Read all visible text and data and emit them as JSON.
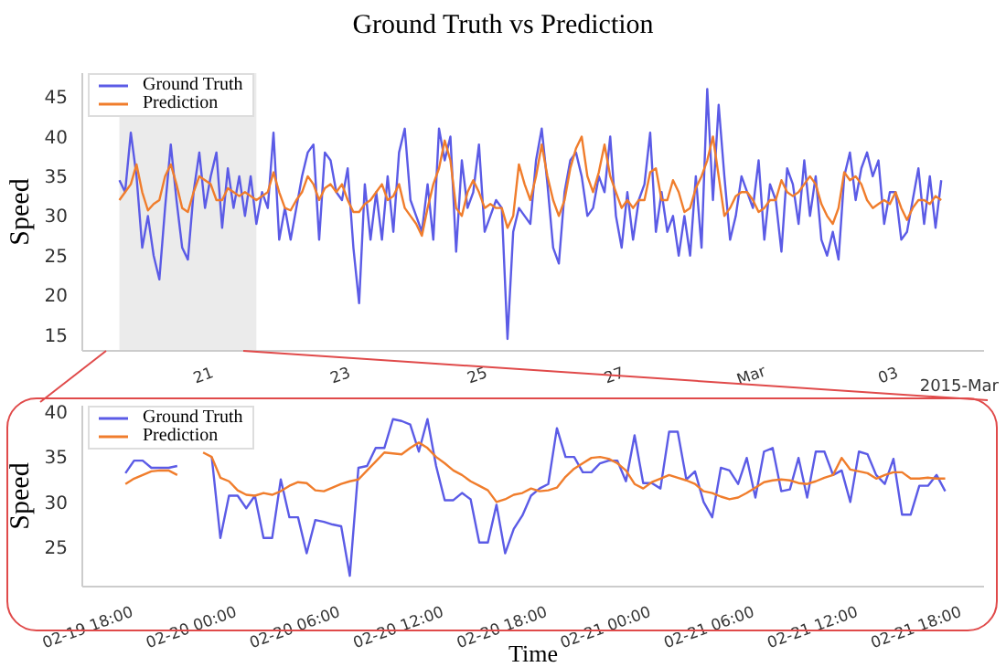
{
  "chart_data": [
    {
      "type": "line",
      "title": "Ground Truth vs Prediction",
      "ylabel": "Speed",
      "legend": "top left",
      "xlim": [
        "2015-02-19T05:00",
        "2015-03-04T09:00"
      ],
      "ylim": [
        13,
        48
      ],
      "yticks": [
        15,
        20,
        25,
        30,
        35,
        40,
        45
      ],
      "xticks": [
        {
          "value": "2015-02-21",
          "label": "21"
        },
        {
          "value": "2015-02-23",
          "label": "23"
        },
        {
          "value": "2015-02-25",
          "label": "25"
        },
        {
          "value": "2015-02-27",
          "label": "27"
        },
        {
          "value": "2015-03-01",
          "label": "Mar"
        },
        {
          "value": "2015-03-03",
          "label": "03"
        }
      ],
      "annotations": [
        "2015-Mar"
      ],
      "bands": [
        {
          "axis": "x",
          "from": "2015-02-19T18:00",
          "to": "2015-02-21T18:00",
          "color": "#ebebeb"
        }
      ],
      "x": [
        "2015-02-19T18:00",
        "2015-02-19T20:00",
        "2015-02-19T22:00",
        "2015-02-20T00:00",
        "2015-02-20T02:00",
        "2015-02-20T04:00",
        "2015-02-20T06:00",
        "2015-02-20T08:00",
        "2015-02-20T10:00",
        "2015-02-20T12:00",
        "2015-02-20T14:00",
        "2015-02-20T16:00",
        "2015-02-20T18:00",
        "2015-02-20T20:00",
        "2015-02-20T22:00",
        "2015-02-21T00:00",
        "2015-02-21T02:00",
        "2015-02-21T04:00",
        "2015-02-21T06:00",
        "2015-02-21T08:00",
        "2015-02-21T10:00",
        "2015-02-21T12:00",
        "2015-02-21T14:00",
        "2015-02-21T16:00",
        "2015-02-21T18:00",
        "2015-02-21T20:00",
        "2015-02-21T22:00",
        "2015-02-22T00:00",
        "2015-02-22T02:00",
        "2015-02-22T04:00",
        "2015-02-22T06:00",
        "2015-02-22T08:00",
        "2015-02-22T10:00",
        "2015-02-22T12:00",
        "2015-02-22T14:00",
        "2015-02-22T16:00",
        "2015-02-22T18:00",
        "2015-02-22T20:00",
        "2015-02-22T22:00",
        "2015-02-23T00:00",
        "2015-02-23T02:00",
        "2015-02-23T04:00",
        "2015-02-23T06:00",
        "2015-02-23T08:00",
        "2015-02-23T10:00",
        "2015-02-23T12:00",
        "2015-02-23T14:00",
        "2015-02-23T16:00",
        "2015-02-23T18:00",
        "2015-02-23T20:00",
        "2015-02-23T22:00",
        "2015-02-24T00:00",
        "2015-02-24T02:00",
        "2015-02-24T04:00",
        "2015-02-24T06:00",
        "2015-02-24T08:00",
        "2015-02-24T10:00",
        "2015-02-24T12:00",
        "2015-02-24T14:00",
        "2015-02-24T16:00",
        "2015-02-24T18:00",
        "2015-02-24T20:00",
        "2015-02-24T22:00",
        "2015-02-25T00:00",
        "2015-02-25T02:00",
        "2015-02-25T04:00",
        "2015-02-25T06:00",
        "2015-02-25T08:00",
        "2015-02-25T10:00",
        "2015-02-25T12:00",
        "2015-02-25T14:00",
        "2015-02-25T16:00",
        "2015-02-25T18:00",
        "2015-02-25T20:00",
        "2015-02-25T22:00",
        "2015-02-26T00:00",
        "2015-02-26T02:00",
        "2015-02-26T04:00",
        "2015-02-26T06:00",
        "2015-02-26T08:00",
        "2015-02-26T10:00",
        "2015-02-26T12:00",
        "2015-02-26T14:00",
        "2015-02-26T16:00",
        "2015-02-26T18:00",
        "2015-02-26T20:00",
        "2015-02-26T22:00",
        "2015-02-27T00:00",
        "2015-02-27T02:00",
        "2015-02-27T04:00",
        "2015-02-27T06:00",
        "2015-02-27T08:00",
        "2015-02-27T10:00",
        "2015-02-27T12:00",
        "2015-02-27T14:00",
        "2015-02-27T16:00",
        "2015-02-27T18:00",
        "2015-02-27T20:00",
        "2015-02-27T22:00",
        "2015-02-28T00:00",
        "2015-02-28T02:00",
        "2015-02-28T04:00",
        "2015-02-28T06:00",
        "2015-02-28T08:00",
        "2015-02-28T10:00",
        "2015-02-28T12:00",
        "2015-02-28T14:00",
        "2015-02-28T16:00",
        "2015-02-28T18:00",
        "2015-02-28T20:00",
        "2015-02-28T22:00",
        "2015-03-01T00:00",
        "2015-03-01T02:00",
        "2015-03-01T04:00",
        "2015-03-01T06:00",
        "2015-03-01T08:00",
        "2015-03-01T10:00",
        "2015-03-01T12:00",
        "2015-03-01T14:00",
        "2015-03-01T16:00",
        "2015-03-01T18:00",
        "2015-03-01T20:00",
        "2015-03-01T22:00",
        "2015-03-02T00:00",
        "2015-03-02T02:00",
        "2015-03-02T04:00",
        "2015-03-02T06:00",
        "2015-03-02T08:00",
        "2015-03-02T10:00",
        "2015-03-02T12:00",
        "2015-03-02T14:00",
        "2015-03-02T16:00",
        "2015-03-02T18:00",
        "2015-03-02T20:00",
        "2015-03-02T22:00",
        "2015-03-03T00:00",
        "2015-03-03T02:00",
        "2015-03-03T04:00",
        "2015-03-03T06:00",
        "2015-03-03T08:00",
        "2015-03-03T10:00",
        "2015-03-03T12:00",
        "2015-03-03T14:00",
        "2015-03-03T16:00",
        "2015-03-03T18:00"
      ],
      "series": [
        {
          "name": "Ground Truth",
          "color": "#5b5be6",
          "values": [
            34.5,
            33,
            40.5,
            35,
            26,
            30,
            25,
            22,
            31,
            39,
            32,
            26,
            24.5,
            33,
            38,
            31,
            35,
            38,
            28.5,
            36,
            31,
            35,
            30,
            35,
            29,
            33,
            31,
            40.5,
            27,
            31,
            27,
            31,
            35,
            38,
            39,
            27,
            38,
            37,
            33,
            32,
            36,
            26,
            19,
            34,
            27,
            33,
            27,
            35,
            28,
            38,
            41,
            32,
            30,
            28,
            34,
            27,
            41,
            37,
            40,
            25.5,
            37,
            31,
            33,
            39,
            28,
            30,
            32,
            31,
            14.5,
            28,
            31,
            30,
            29,
            37,
            41,
            34,
            26,
            24,
            33,
            37,
            38,
            35,
            30,
            31,
            35,
            33,
            40,
            30,
            26,
            33,
            27,
            32,
            34,
            40.5,
            28,
            33,
            28,
            30,
            25,
            30,
            25,
            35,
            26,
            46,
            32,
            44,
            35,
            27,
            30,
            35,
            33,
            31,
            37,
            27,
            34,
            32,
            25.5,
            36,
            34,
            29,
            37,
            30,
            35,
            27,
            25,
            28,
            24.5,
            35,
            38,
            32,
            36,
            38,
            35,
            37,
            29,
            33,
            33,
            27,
            28,
            32,
            36,
            29,
            35,
            28.5,
            34.5
          ]
        },
        {
          "name": "Prediction",
          "color": "#f07d2c",
          "values": [
            32,
            33,
            34,
            36.5,
            33,
            30.7,
            31.5,
            32,
            35,
            36.5,
            34,
            31,
            30.5,
            33,
            35,
            34.5,
            34,
            32,
            32,
            33.5,
            33,
            32.5,
            33,
            32.5,
            32,
            32.5,
            33,
            35.5,
            33,
            31,
            30.7,
            32,
            33,
            35,
            34,
            32,
            33.5,
            34,
            33,
            34,
            32,
            30.5,
            30.5,
            31.5,
            32,
            33,
            34,
            32,
            32.5,
            34,
            31,
            30,
            29,
            27.5,
            31,
            34,
            36,
            39.5,
            37,
            31,
            30,
            33,
            34.5,
            33,
            31,
            31.5,
            31,
            31,
            28.5,
            30,
            36.5,
            34,
            32,
            35,
            39,
            35,
            32,
            30,
            32,
            36,
            38.5,
            40,
            35,
            33,
            35.5,
            39,
            35,
            33,
            31,
            32,
            31,
            32,
            32,
            35.5,
            36,
            32,
            32,
            34.5,
            33,
            30.5,
            31,
            33.5,
            35,
            37,
            40,
            35,
            30,
            31,
            32.5,
            33,
            33,
            32,
            30.5,
            31,
            32,
            32,
            34.5,
            33,
            32.5,
            33,
            34,
            35,
            34,
            31.5,
            30,
            29,
            31,
            35.5,
            34.5,
            35,
            34,
            32,
            31,
            31.5,
            32,
            31.5,
            33,
            31,
            29.5,
            31,
            32,
            32,
            31.5,
            32.5,
            32
          ]
        }
      ]
    },
    {
      "type": "line",
      "xlabel": "Time",
      "ylabel": "Speed",
      "legend": "top left",
      "xlim": [
        "2015-02-19T15:00",
        "2015-02-21T19:15"
      ],
      "ylim": [
        20.6,
        40.7
      ],
      "yticks": [
        25,
        30,
        35,
        40
      ],
      "xticks": [
        {
          "value": "2015-02-19T18:00",
          "label": "02-19 18:00"
        },
        {
          "value": "2015-02-20T00:00",
          "label": "02-20 00:00"
        },
        {
          "value": "2015-02-20T06:00",
          "label": "02-20 06:00"
        },
        {
          "value": "2015-02-20T12:00",
          "label": "02-20 12:00"
        },
        {
          "value": "2015-02-20T18:00",
          "label": "02-20 18:00"
        },
        {
          "value": "2015-02-21T00:00",
          "label": "02-21 00:00"
        },
        {
          "value": "2015-02-21T06:00",
          "label": "02-21 06:00"
        },
        {
          "value": "2015-02-21T12:00",
          "label": "02-21 12:00"
        },
        {
          "value": "2015-02-21T18:00",
          "label": "02-21 18:00"
        }
      ],
      "x": [
        "2015-02-19T17:30",
        "2015-02-19T18:00",
        "2015-02-19T18:30",
        "2015-02-19T19:00",
        "2015-02-19T19:30",
        "2015-02-19T20:00",
        "2015-02-19T20:30",
        "2015-02-19T21:00",
        "2015-02-19T21:30",
        "2015-02-19T22:00",
        "2015-02-19T22:30",
        "2015-02-19T23:00",
        "2015-02-19T23:30",
        "2015-02-20T00:00",
        "2015-02-20T00:30",
        "2015-02-20T01:00",
        "2015-02-20T01:30",
        "2015-02-20T02:00",
        "2015-02-20T02:30",
        "2015-02-20T03:00",
        "2015-02-20T03:30",
        "2015-02-20T04:00",
        "2015-02-20T04:30",
        "2015-02-20T05:00",
        "2015-02-20T05:30",
        "2015-02-20T06:00",
        "2015-02-20T06:30",
        "2015-02-20T07:00",
        "2015-02-20T07:30",
        "2015-02-20T08:00",
        "2015-02-20T08:30",
        "2015-02-20T09:00",
        "2015-02-20T09:30",
        "2015-02-20T10:00",
        "2015-02-20T10:30",
        "2015-02-20T11:00",
        "2015-02-20T11:30",
        "2015-02-20T12:00",
        "2015-02-20T12:30",
        "2015-02-20T13:00",
        "2015-02-20T13:30",
        "2015-02-20T14:00",
        "2015-02-20T14:30",
        "2015-02-20T15:00",
        "2015-02-20T15:30",
        "2015-02-20T16:00",
        "2015-02-20T16:30",
        "2015-02-20T17:00",
        "2015-02-20T17:30",
        "2015-02-20T18:00",
        "2015-02-20T18:30",
        "2015-02-20T19:00",
        "2015-02-20T19:30",
        "2015-02-20T20:00",
        "2015-02-20T20:30",
        "2015-02-20T21:00",
        "2015-02-20T21:30",
        "2015-02-20T22:00",
        "2015-02-20T22:30",
        "2015-02-20T23:00",
        "2015-02-20T23:30",
        "2015-02-21T00:00",
        "2015-02-21T00:30",
        "2015-02-21T01:00",
        "2015-02-21T01:30",
        "2015-02-21T02:00",
        "2015-02-21T02:30",
        "2015-02-21T03:00",
        "2015-02-21T03:30",
        "2015-02-21T04:00",
        "2015-02-21T04:30",
        "2015-02-21T05:00",
        "2015-02-21T05:30",
        "2015-02-21T06:00",
        "2015-02-21T06:30",
        "2015-02-21T07:00",
        "2015-02-21T07:30",
        "2015-02-21T08:00",
        "2015-02-21T08:30",
        "2015-02-21T09:00",
        "2015-02-21T09:30",
        "2015-02-21T10:00",
        "2015-02-21T10:30",
        "2015-02-21T11:00",
        "2015-02-21T11:30",
        "2015-02-21T12:00",
        "2015-02-21T12:30",
        "2015-02-21T13:00",
        "2015-02-21T13:30",
        "2015-02-21T14:00",
        "2015-02-21T14:30",
        "2015-02-21T15:00",
        "2015-02-21T15:30",
        "2015-02-21T16:00",
        "2015-02-21T16:30",
        "2015-02-21T17:00"
      ],
      "series": [
        {
          "name": "Ground Truth",
          "color": "#5b5be6",
          "values": [
            33.2,
            34.6,
            34.6,
            33.8,
            33.8,
            33.8,
            34,
            null,
            null,
            null,
            35,
            26,
            30.7,
            30.7,
            29.3,
            30.7,
            26,
            26,
            32.5,
            28.3,
            28.3,
            24.3,
            28,
            27.8,
            27.5,
            27.3,
            21.8,
            33.8,
            34,
            36,
            36,
            39.2,
            39,
            38.6,
            35.6,
            39.2,
            34,
            30.2,
            30.2,
            31,
            30.3,
            25.5,
            25.5,
            29.7,
            24.3,
            27,
            28.5,
            30.7,
            31.5,
            32,
            38.2,
            35,
            35,
            33.3,
            33.3,
            34.3,
            34.6,
            34.6,
            32.3,
            37.4,
            32.1,
            32.1,
            31.5,
            37.8,
            37.8,
            32.5,
            33.4,
            30,
            28.3,
            33.8,
            33.5,
            32,
            34.9,
            30.5,
            35.6,
            36,
            31.2,
            31.4,
            34.9,
            30.5,
            35.6,
            35.6,
            33,
            33.5,
            30,
            35.6,
            35.3,
            33,
            32,
            34.8,
            28.6,
            28.6,
            31.8,
            31.8,
            33,
            31.2
          ]
        },
        {
          "name": "Prediction",
          "color": "#f07d2c",
          "values": [
            32,
            32.6,
            33,
            33.4,
            33.5,
            33.5,
            33,
            null,
            null,
            35.5,
            35,
            32.7,
            32.3,
            31.3,
            30.8,
            30.7,
            31,
            30.8,
            31.2,
            31.8,
            32.2,
            32.1,
            31.3,
            31.2,
            31.6,
            32,
            32.3,
            32.5,
            33.5,
            34.5,
            35.5,
            35.4,
            35.3,
            36,
            36.6,
            36,
            35,
            34.3,
            33.5,
            33,
            32.3,
            31.8,
            31.3,
            30,
            30.3,
            30.8,
            31,
            31.5,
            31.2,
            31.3,
            31.6,
            32.8,
            33.7,
            34.3,
            34.9,
            35,
            34.8,
            34.3,
            33.5,
            32,
            31.5,
            32.2,
            32.6,
            33,
            32.7,
            32.4,
            32,
            31.2,
            31,
            30.6,
            30.3,
            30.5,
            31,
            31.6,
            32.2,
            32.4,
            32.5,
            32.4,
            32.1,
            32,
            32.3,
            32.7,
            33,
            34.9,
            33.6,
            33.4,
            33.2,
            32.6,
            33,
            33.3,
            33.3,
            32.6,
            32.6,
            32.7,
            32.6,
            32.6
          ]
        }
      ]
    }
  ]
}
